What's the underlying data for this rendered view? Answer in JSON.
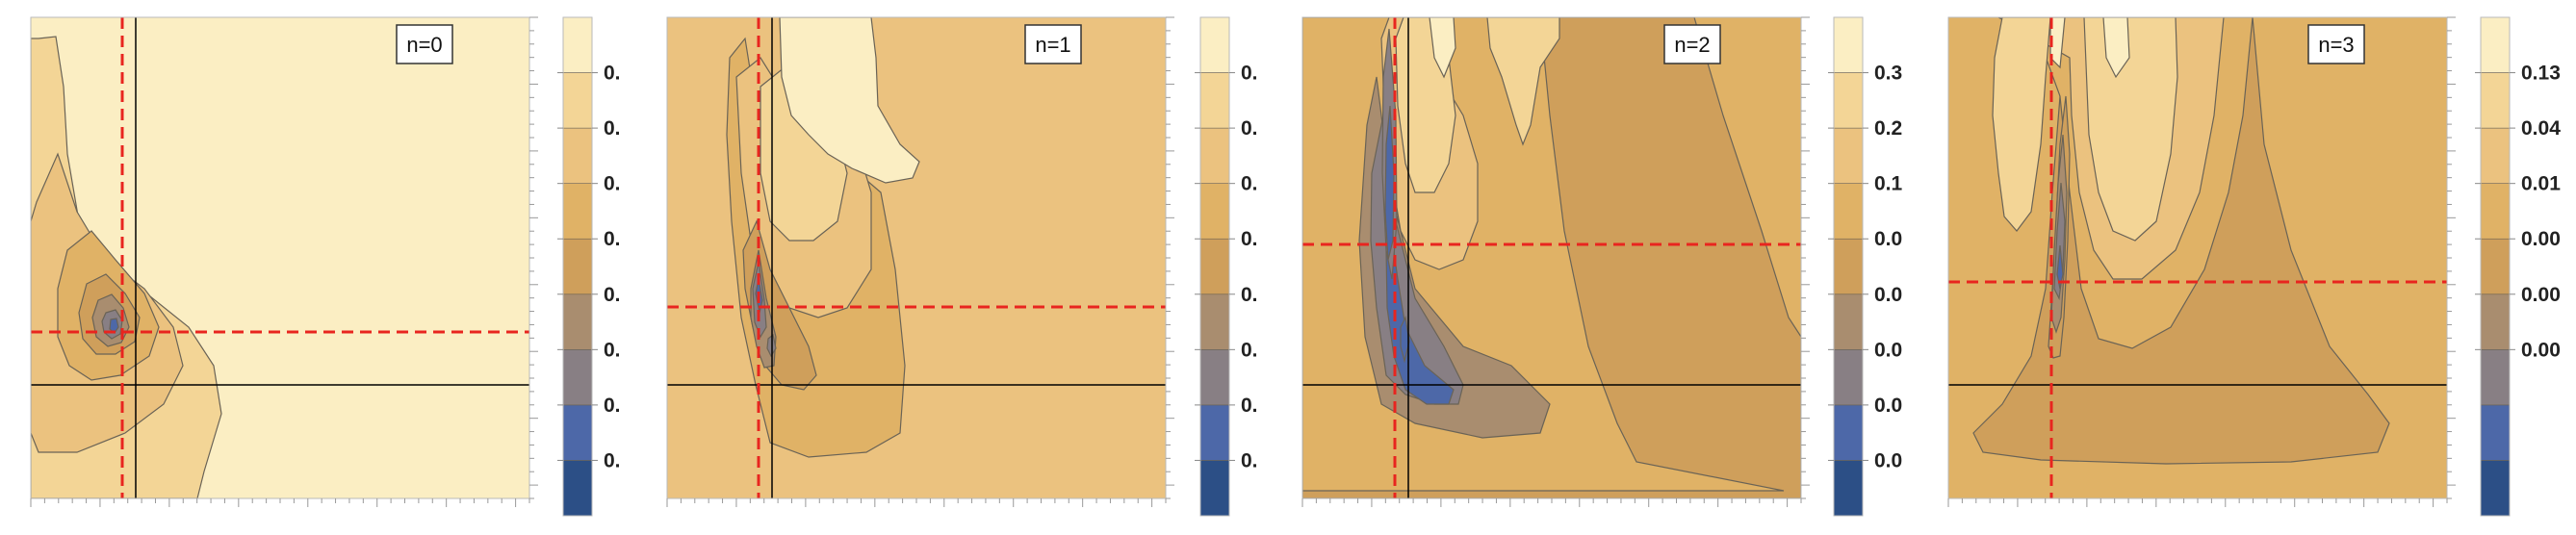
{
  "chart_data": [
    {
      "type": "contour",
      "label": "n=0",
      "palette": [
        "#2c4f86",
        "#4d68a8",
        "#887f84",
        "#a98d6f",
        "#cf9f5b",
        "#e0b266",
        "#ebc27f",
        "#f3d596",
        "#fbeec3"
      ],
      "colorbar_ticks": [
        "0.",
        "0.",
        "0.",
        "0.",
        "0.",
        "0.",
        "0.",
        "0."
      ],
      "peak": {
        "x": 0.19,
        "y": 0.34
      },
      "reference_lines": {
        "vertical": 0.21,
        "horizontal": 0.23
      }
    },
    {
      "type": "contour",
      "label": "n=1",
      "palette": [
        "#2c4f86",
        "#4d68a8",
        "#887f84",
        "#a98d6f",
        "#cf9f5b",
        "#e0b266",
        "#ebc27f",
        "#f3d596",
        "#fbeec3"
      ],
      "colorbar_ticks": [
        "0.",
        "0.",
        "0.",
        "0.",
        "0.",
        "0.",
        "0.",
        "0."
      ],
      "peak": {
        "x": 0.18,
        "y": 0.41
      },
      "reference_lines": {
        "vertical": 0.21,
        "horizontal": 0.23
      }
    },
    {
      "type": "contour",
      "label": "n=2",
      "palette": [
        "#2c4f86",
        "#4d68a8",
        "#887f84",
        "#a98d6f",
        "#cf9f5b",
        "#e0b266",
        "#ebc27f",
        "#f3d596",
        "#fbeec3"
      ],
      "colorbar_ticks": [
        "0.3",
        "0.2",
        "0.1",
        "0.0",
        "0.0",
        "0.0",
        "0.0",
        "0.0"
      ],
      "peak": {
        "x": 0.18,
        "y": 0.54
      },
      "reference_lines": {
        "vertical": 0.21,
        "horizontal": 0.23
      }
    },
    {
      "type": "contour",
      "label": "n=3",
      "palette": [
        "#2c4f86",
        "#4d68a8",
        "#887f84",
        "#a98d6f",
        "#cf9f5b",
        "#e0b266",
        "#ebc27f",
        "#f3d596",
        "#fbeec3"
      ],
      "colorbar_ticks": [
        "0.13",
        "0.04",
        "0.01",
        "0.00",
        "0.00",
        "0.00"
      ],
      "peak": {
        "x": 0.21,
        "y": 0.45
      },
      "reference_lines": {
        "vertical": 0.21,
        "horizontal": 0.23
      }
    }
  ]
}
